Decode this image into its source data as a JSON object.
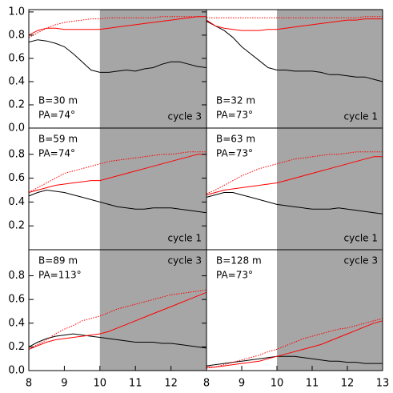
{
  "chart_data": [
    {
      "type": "line",
      "xlim": [
        8,
        13
      ],
      "ylim": [
        0,
        1.02
      ],
      "shade": [
        10,
        13
      ],
      "yticks": [
        {
          "value": 0,
          "label": "0.0"
        },
        0.2,
        0.4,
        0.6,
        0.8,
        {
          "value": 1,
          "label": "1.0"
        }
      ],
      "annotations": [
        "B=30 m",
        "PA=74°",
        "cycle 3"
      ],
      "x": [
        8,
        8.25,
        8.5,
        8.75,
        9,
        9.25,
        9.5,
        9.75,
        10,
        10.25,
        10.5,
        10.75,
        11,
        11.25,
        11.5,
        11.75,
        12,
        12.25,
        12.5,
        12.75,
        13
      ],
      "series": [
        {
          "color": "#000000",
          "style": "solid",
          "values": [
            0.74,
            0.76,
            0.75,
            0.73,
            0.7,
            0.64,
            0.57,
            0.5,
            0.48,
            0.48,
            0.49,
            0.5,
            0.49,
            0.51,
            0.52,
            0.55,
            0.57,
            0.57,
            0.55,
            0.53,
            0.52
          ]
        },
        {
          "color": "#ff0000",
          "style": "solid",
          "values": [
            0.8,
            0.84,
            0.86,
            0.86,
            0.85,
            0.85,
            0.85,
            0.85,
            0.85,
            0.86,
            0.87,
            0.88,
            0.89,
            0.9,
            0.91,
            0.92,
            0.93,
            0.94,
            0.95,
            0.96,
            0.96
          ]
        },
        {
          "color": "#ff0000",
          "style": "dotted",
          "values": [
            0.78,
            0.82,
            0.86,
            0.89,
            0.91,
            0.92,
            0.93,
            0.94,
            0.94,
            0.95,
            0.95,
            0.95,
            0.95,
            0.95,
            0.95,
            0.96,
            0.96,
            0.96,
            0.96,
            0.96,
            0.96
          ]
        }
      ]
    },
    {
      "type": "line",
      "xlim": [
        8,
        13
      ],
      "ylim": [
        0,
        1.02
      ],
      "shade": [
        10,
        13
      ],
      "annotations": [
        "B=32 m",
        "PA=73°",
        "cycle 1"
      ],
      "x": [
        8,
        8.25,
        8.5,
        8.75,
        9,
        9.25,
        9.5,
        9.75,
        10,
        10.25,
        10.5,
        10.75,
        11,
        11.25,
        11.5,
        11.75,
        12,
        12.25,
        12.5,
        12.75,
        13
      ],
      "series": [
        {
          "color": "#000000",
          "style": "solid",
          "values": [
            0.92,
            0.88,
            0.84,
            0.78,
            0.7,
            0.64,
            0.58,
            0.52,
            0.5,
            0.5,
            0.49,
            0.49,
            0.49,
            0.48,
            0.46,
            0.46,
            0.45,
            0.44,
            0.44,
            0.42,
            0.4
          ]
        },
        {
          "color": "#ff0000",
          "style": "solid",
          "values": [
            0.93,
            0.88,
            0.86,
            0.85,
            0.84,
            0.84,
            0.84,
            0.85,
            0.85,
            0.86,
            0.87,
            0.88,
            0.89,
            0.9,
            0.91,
            0.92,
            0.93,
            0.93,
            0.94,
            0.94,
            0.94
          ]
        },
        {
          "color": "#ff0000",
          "style": "dotted",
          "values": [
            0.95,
            0.95,
            0.95,
            0.95,
            0.95,
            0.95,
            0.95,
            0.95,
            0.95,
            0.95,
            0.95,
            0.95,
            0.95,
            0.95,
            0.95,
            0.95,
            0.95,
            0.95,
            0.96,
            0.96,
            0.96
          ]
        }
      ]
    },
    {
      "type": "line",
      "xlim": [
        8,
        13
      ],
      "ylim": [
        0,
        1.02
      ],
      "shade": [
        10,
        13
      ],
      "yticks": [
        0.2,
        0.4,
        0.6,
        0.8
      ],
      "annotations": [
        "B=59 m",
        "PA=74°",
        "cycle 1"
      ],
      "x": [
        8,
        8.25,
        8.5,
        8.75,
        9,
        9.25,
        9.5,
        9.75,
        10,
        10.25,
        10.5,
        10.75,
        11,
        11.25,
        11.5,
        11.75,
        12,
        12.25,
        12.5,
        12.75,
        13
      ],
      "series": [
        {
          "color": "#000000",
          "style": "solid",
          "values": [
            0.45,
            0.48,
            0.5,
            0.49,
            0.48,
            0.46,
            0.44,
            0.42,
            0.4,
            0.38,
            0.36,
            0.35,
            0.34,
            0.34,
            0.35,
            0.35,
            0.35,
            0.34,
            0.33,
            0.32,
            0.31
          ]
        },
        {
          "color": "#ff0000",
          "style": "solid",
          "values": [
            0.48,
            0.5,
            0.52,
            0.54,
            0.55,
            0.56,
            0.57,
            0.58,
            0.58,
            0.6,
            0.62,
            0.64,
            0.66,
            0.68,
            0.7,
            0.72,
            0.74,
            0.76,
            0.78,
            0.8,
            0.8
          ]
        },
        {
          "color": "#ff0000",
          "style": "dotted",
          "values": [
            0.48,
            0.52,
            0.56,
            0.6,
            0.64,
            0.66,
            0.68,
            0.7,
            0.72,
            0.74,
            0.75,
            0.76,
            0.77,
            0.78,
            0.79,
            0.8,
            0.8,
            0.81,
            0.82,
            0.82,
            0.82
          ]
        }
      ]
    },
    {
      "type": "line",
      "xlim": [
        8,
        13
      ],
      "ylim": [
        0,
        1.02
      ],
      "shade": [
        10,
        13
      ],
      "annotations": [
        "B=63 m",
        "PA=73°",
        "cycle 1"
      ],
      "x": [
        8,
        8.25,
        8.5,
        8.75,
        9,
        9.25,
        9.5,
        9.75,
        10,
        10.25,
        10.5,
        10.75,
        11,
        11.25,
        11.5,
        11.75,
        12,
        12.25,
        12.5,
        12.75,
        13
      ],
      "series": [
        {
          "color": "#000000",
          "style": "solid",
          "values": [
            0.44,
            0.46,
            0.48,
            0.48,
            0.46,
            0.44,
            0.42,
            0.4,
            0.38,
            0.37,
            0.36,
            0.35,
            0.34,
            0.34,
            0.34,
            0.35,
            0.34,
            0.33,
            0.32,
            0.31,
            0.3
          ]
        },
        {
          "color": "#ff0000",
          "style": "solid",
          "values": [
            0.46,
            0.48,
            0.5,
            0.51,
            0.52,
            0.53,
            0.54,
            0.55,
            0.56,
            0.58,
            0.6,
            0.62,
            0.64,
            0.66,
            0.68,
            0.7,
            0.72,
            0.74,
            0.76,
            0.78,
            0.78
          ]
        },
        {
          "color": "#ff0000",
          "style": "dotted",
          "values": [
            0.47,
            0.5,
            0.54,
            0.58,
            0.62,
            0.65,
            0.68,
            0.7,
            0.72,
            0.74,
            0.76,
            0.77,
            0.78,
            0.79,
            0.8,
            0.8,
            0.81,
            0.82,
            0.82,
            0.82,
            0.82
          ]
        }
      ]
    },
    {
      "type": "line",
      "xlim": [
        8,
        13
      ],
      "ylim": [
        0,
        1.02
      ],
      "shade": [
        10,
        13
      ],
      "yticks": [
        {
          "value": 0,
          "label": "0.0"
        },
        0.2,
        0.4,
        0.6,
        0.8
      ],
      "xticks": [
        8,
        9,
        10,
        11,
        12
      ],
      "annotations": [
        "B=89 m",
        "PA=113°",
        "cycle 3"
      ],
      "x": [
        8,
        8.25,
        8.5,
        8.75,
        9,
        9.25,
        9.5,
        9.75,
        10,
        10.25,
        10.5,
        10.75,
        11,
        11.25,
        11.5,
        11.75,
        12,
        12.25,
        12.5,
        12.75,
        13
      ],
      "series": [
        {
          "color": "#000000",
          "style": "solid",
          "values": [
            0.2,
            0.24,
            0.27,
            0.29,
            0.3,
            0.31,
            0.3,
            0.29,
            0.28,
            0.27,
            0.26,
            0.25,
            0.24,
            0.24,
            0.24,
            0.23,
            0.23,
            0.22,
            0.21,
            0.2,
            0.19
          ]
        },
        {
          "color": "#ff0000",
          "style": "solid",
          "values": [
            0.18,
            0.21,
            0.24,
            0.26,
            0.27,
            0.28,
            0.29,
            0.3,
            0.31,
            0.33,
            0.36,
            0.39,
            0.42,
            0.45,
            0.48,
            0.51,
            0.54,
            0.57,
            0.6,
            0.63,
            0.66
          ]
        },
        {
          "color": "#ff0000",
          "style": "dotted",
          "values": [
            0.18,
            0.22,
            0.26,
            0.31,
            0.35,
            0.38,
            0.42,
            0.44,
            0.46,
            0.49,
            0.52,
            0.54,
            0.56,
            0.58,
            0.6,
            0.62,
            0.64,
            0.65,
            0.66,
            0.67,
            0.68
          ]
        }
      ]
    },
    {
      "type": "line",
      "xlim": [
        8,
        13
      ],
      "ylim": [
        0,
        1.02
      ],
      "shade": [
        10,
        13
      ],
      "xticks": [
        8,
        9,
        10,
        11,
        12,
        13
      ],
      "annotations": [
        "B=128 m",
        "PA=73°",
        "cycle 3"
      ],
      "x": [
        8,
        8.25,
        8.5,
        8.75,
        9,
        9.25,
        9.5,
        9.75,
        10,
        10.25,
        10.5,
        10.75,
        11,
        11.25,
        11.5,
        11.75,
        12,
        12.25,
        12.5,
        12.75,
        13
      ],
      "series": [
        {
          "color": "#000000",
          "style": "solid",
          "values": [
            0.04,
            0.05,
            0.06,
            0.07,
            0.08,
            0.09,
            0.1,
            0.11,
            0.12,
            0.12,
            0.12,
            0.11,
            0.1,
            0.09,
            0.08,
            0.08,
            0.07,
            0.07,
            0.06,
            0.06,
            0.06
          ]
        },
        {
          "color": "#ff0000",
          "style": "solid",
          "values": [
            0.03,
            0.03,
            0.04,
            0.05,
            0.06,
            0.07,
            0.08,
            0.1,
            0.12,
            0.14,
            0.16,
            0.18,
            0.2,
            0.22,
            0.25,
            0.28,
            0.31,
            0.34,
            0.37,
            0.4,
            0.42
          ]
        },
        {
          "color": "#ff0000",
          "style": "dotted",
          "values": [
            0.02,
            0.03,
            0.05,
            0.07,
            0.09,
            0.11,
            0.13,
            0.16,
            0.18,
            0.21,
            0.24,
            0.27,
            0.29,
            0.31,
            0.33,
            0.35,
            0.36,
            0.38,
            0.4,
            0.42,
            0.44
          ]
        }
      ]
    }
  ]
}
